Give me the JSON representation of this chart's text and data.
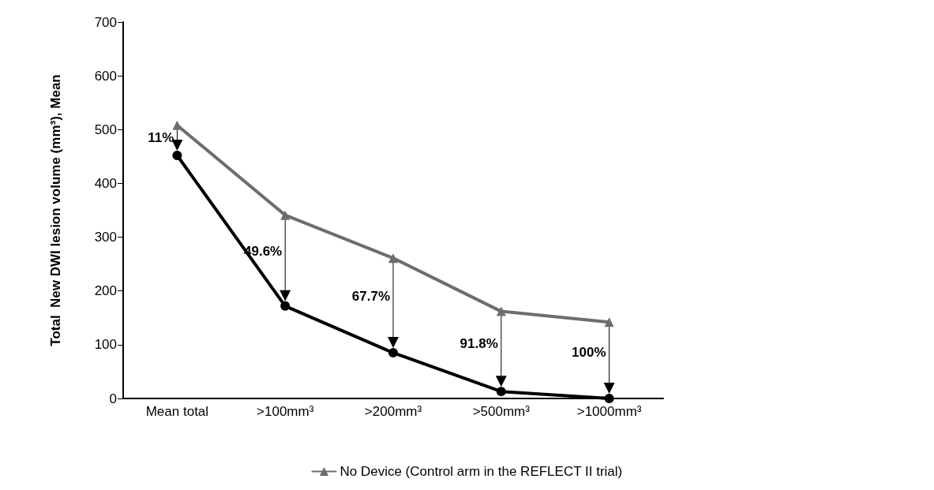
{
  "chart_data": {
    "type": "line",
    "ylabel": "Total  New DWI lesion volume (mm³), Mean",
    "categories": [
      "Mean total",
      ">100mm³",
      ">200mm³",
      ">500mm³",
      ">1000mm³"
    ],
    "series": [
      {
        "color": "#000000",
        "marker": "circle",
        "values": [
          452,
          172,
          85,
          13,
          0
        ]
      },
      {
        "name": "No Device (Control arm in the REFLECT II trial)",
        "color": "#6d6d6d",
        "marker": "triangle",
        "values": [
          508,
          341,
          261,
          162,
          142
        ]
      }
    ],
    "ylim": [
      0,
      700
    ],
    "yticks": [
      0,
      100,
      200,
      300,
      400,
      500,
      600,
      700
    ],
    "grid": false,
    "legend": "bottom",
    "line_style": "solid",
    "annotations": [
      "11%",
      "49.6%",
      "67.7%",
      "91.8%",
      "100%"
    ]
  }
}
